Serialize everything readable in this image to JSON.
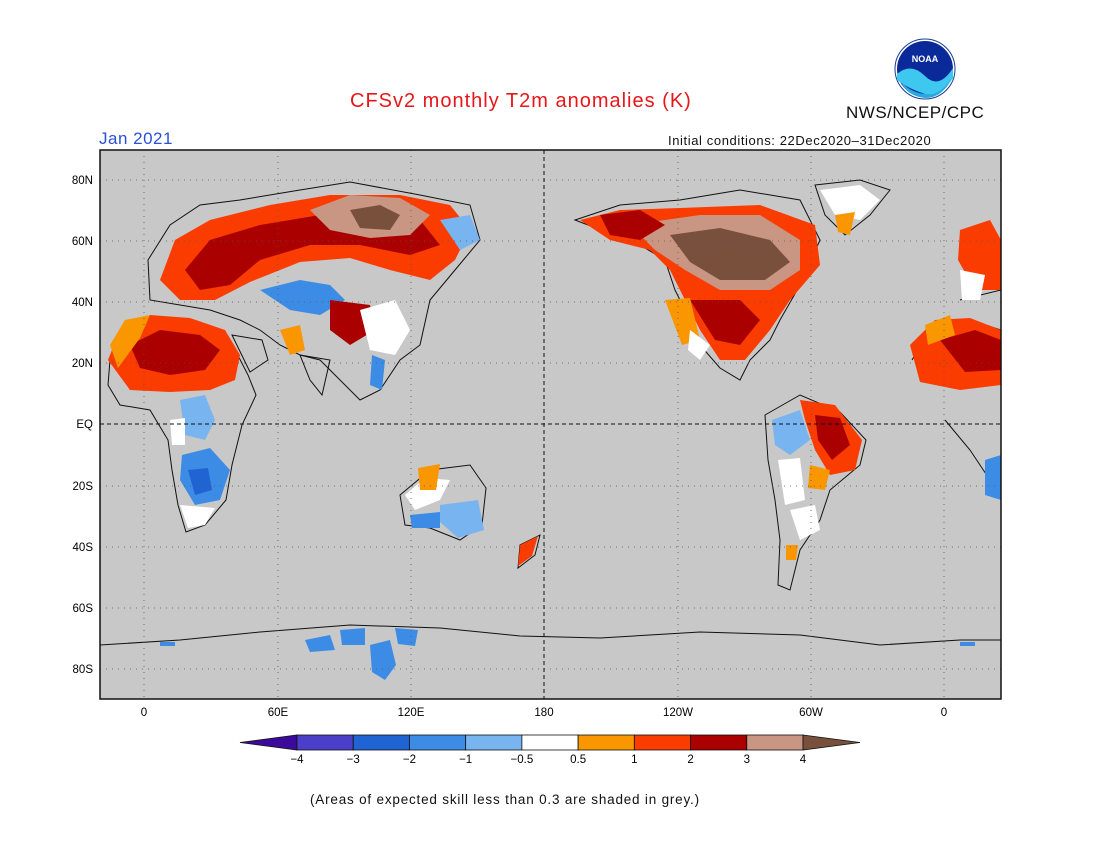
{
  "header": {
    "title": "CFSv2 monthly T2m anomalies (K)",
    "agency": "NWS/NCEP/CPC",
    "month": "Jan 2021",
    "initial_conditions": "Initial conditions: 22Dec2020–31Dec2020"
  },
  "logo": {
    "text": "NOAA",
    "icon": "noaa-logo-icon"
  },
  "map": {
    "background_color": "#c8c8c8",
    "lat_labels": [
      "80N",
      "60N",
      "40N",
      "20N",
      "EQ",
      "20S",
      "40S",
      "60S",
      "80S"
    ],
    "lon_labels": [
      "0",
      "60E",
      "120E",
      "180",
      "120W",
      "60W",
      "0"
    ]
  },
  "colorbar": {
    "labels": [
      "−4",
      "−3",
      "−2",
      "−1",
      "−0.5",
      "0.5",
      "1",
      "2",
      "3",
      "4"
    ],
    "colors": [
      "#3c0a9a",
      "#4b3ec8",
      "#1f64d2",
      "#3c8ce6",
      "#78b4f0",
      "#ffffff",
      "#fa9600",
      "#fa3c00",
      "#aa0000",
      "#c89682",
      "#78503c"
    ]
  },
  "footnote": "(Areas of expected skill less than 0.3 are shaded in grey.)"
}
